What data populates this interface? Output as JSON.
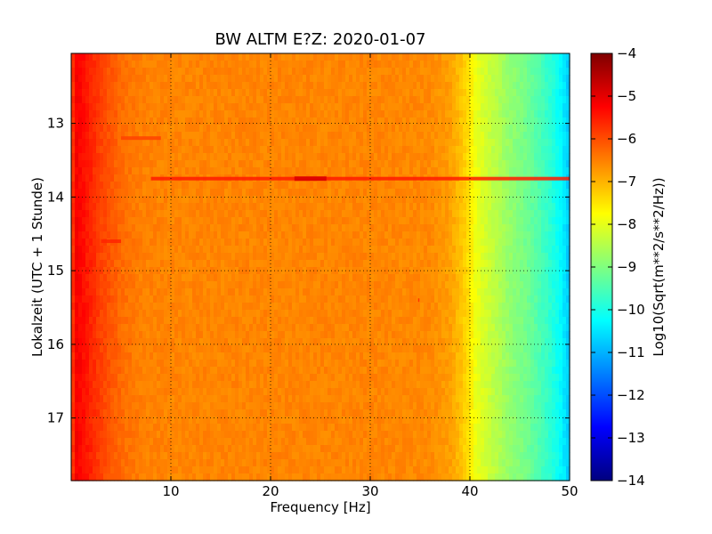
{
  "chart_data": {
    "type": "heatmap",
    "title": "BW ALTM E?Z: 2020-01-07",
    "xlabel": "Frequency [Hz]",
    "ylabel": "Lokalzeit (UTC + 1 Stunde)",
    "colorbar_label": "Log10(Sqrt(m**2/s**2/Hz))",
    "xlim": [
      0,
      50
    ],
    "ylim": [
      17.85,
      12.05
    ],
    "y_inverted": true,
    "x_ticks": [
      10,
      20,
      30,
      40,
      50
    ],
    "y_ticks": [
      13,
      14,
      15,
      16,
      17
    ],
    "colorbar_range": [
      -14,
      -4
    ],
    "colorbar_ticks": [
      -4,
      -5,
      -6,
      -7,
      -8,
      -9,
      -10,
      -11,
      -12,
      -13,
      -14
    ],
    "colormap": "jet",
    "grid": true,
    "spectrum_profile": {
      "frequency_hz": [
        0,
        0.5,
        1,
        2,
        3,
        4,
        5,
        7,
        10,
        20,
        30,
        36,
        38,
        39,
        40,
        40.5,
        42,
        44,
        46,
        47,
        48,
        49,
        50
      ],
      "log10_amplitude": [
        -6.0,
        -5.2,
        -5.3,
        -5.6,
        -5.9,
        -6.1,
        -6.3,
        -6.5,
        -6.55,
        -6.55,
        -6.55,
        -6.6,
        -6.8,
        -7.1,
        -7.5,
        -7.9,
        -8.3,
        -8.8,
        -9.2,
        -9.5,
        -9.8,
        -10.2,
        -10.8
      ]
    },
    "events": [
      {
        "time_h": 13.75,
        "freq_min_hz": 8,
        "freq_max_hz": 50,
        "log10_amplitude": -5.5,
        "peak_freq_hz": 24,
        "peak_log10_amplitude": -4.9
      },
      {
        "time_h": 13.2,
        "freq_min_hz": 5,
        "freq_max_hz": 9,
        "log10_amplitude": -5.9
      },
      {
        "time_h": 14.6,
        "freq_min_hz": 3,
        "freq_max_hz": 5,
        "log10_amplitude": -5.6
      },
      {
        "time_h": 15.4,
        "freq_min_hz": 34.8,
        "freq_max_hz": 34.9,
        "log10_amplitude": -5.6
      }
    ]
  }
}
